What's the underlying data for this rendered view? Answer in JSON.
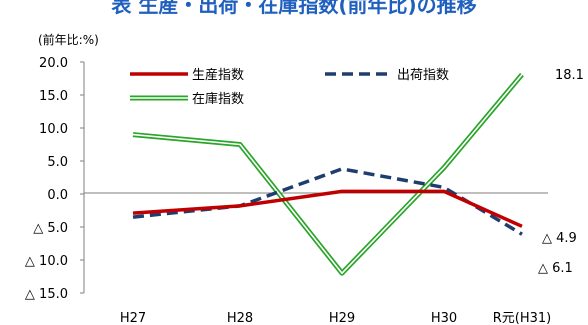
{
  "page_title": "表 生産・出荷・在庫指数(前年比)の推移",
  "chart_data": {
    "type": "line",
    "unit_label": "(前年比:%)",
    "categories": [
      "H27",
      "H28",
      "H29",
      "H30",
      "R元(H31)"
    ],
    "series": [
      {
        "name": "生産指数",
        "values": [
          -2.9,
          -1.8,
          0.4,
          0.4,
          -4.9
        ],
        "color": "#c00000",
        "style": "solid"
      },
      {
        "name": "出荷指数",
        "values": [
          -3.5,
          -1.8,
          3.8,
          1.0,
          -6.1
        ],
        "color": "#1f3d6e",
        "style": "dashed"
      },
      {
        "name": "在庫指数",
        "values": [
          9.0,
          7.5,
          -12.0,
          4.0,
          18.1
        ],
        "color": "#2aa52a",
        "style": "double"
      }
    ],
    "ylim": [
      -15,
      20
    ],
    "yticks": [
      20,
      15,
      10,
      5,
      0,
      -5,
      -10,
      -15
    ],
    "ytick_labels": [
      "20.0",
      "15.0",
      "10.0",
      "5.0",
      "0.0",
      "△ 5.0",
      "△ 10.0",
      "△ 15.0"
    ],
    "data_labels": {
      "production": "△ 4.9",
      "shipment": "△ 6.1",
      "inventory": "18.1"
    },
    "legend_placement": "top-left",
    "grid": false
  }
}
